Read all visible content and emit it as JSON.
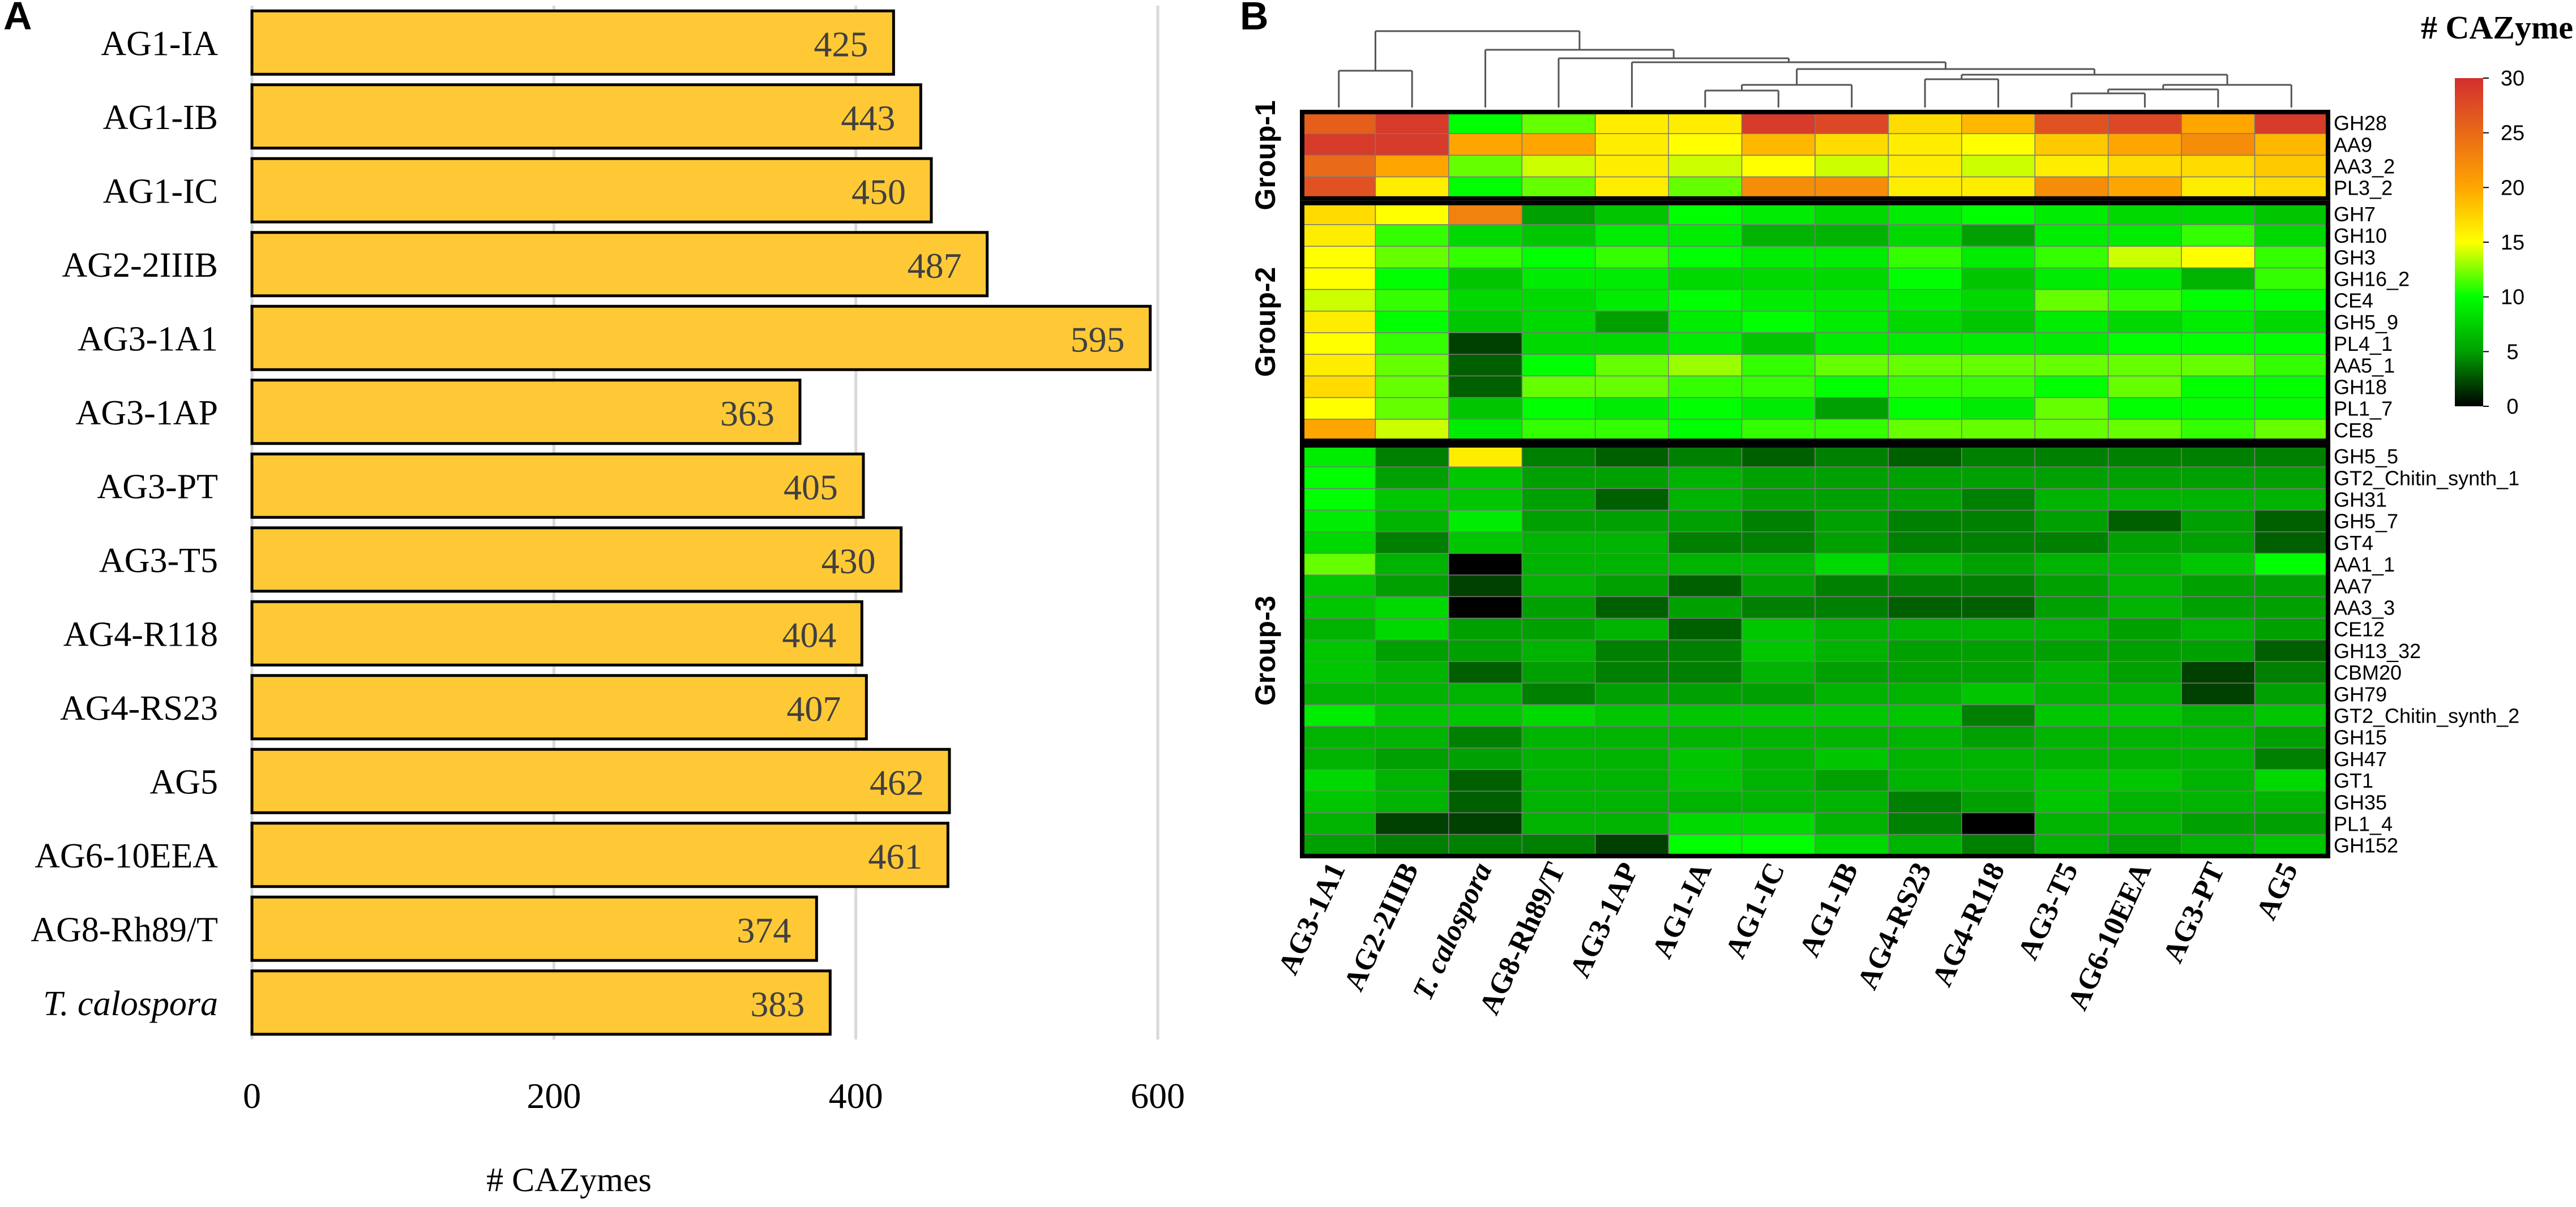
{
  "chart_data": [
    {
      "type": "bar",
      "orientation": "horizontal",
      "panel_label": "A",
      "categories": [
        "AG1-IA",
        "AG1-IB",
        "AG1-IC",
        "AG2-2IIIB",
        "AG3-1A1",
        "AG3-1AP",
        "AG3-PT",
        "AG3-T5",
        "AG4-R118",
        "AG4-RS23",
        "AG5",
        "AG6-10EEA",
        "AG8-Rh89/T",
        "T. calospora"
      ],
      "values": [
        425,
        443,
        450,
        487,
        595,
        363,
        405,
        430,
        404,
        407,
        462,
        461,
        374,
        383
      ],
      "xlabel": "# CAZymes",
      "ylabel": "",
      "xlim": [
        0,
        600
      ],
      "xticks": [
        0,
        200,
        400,
        600
      ],
      "grid": true,
      "bar_color": "#FFC936",
      "italic_categories": [
        "T. calospora"
      ]
    },
    {
      "type": "heatmap",
      "panel_label": "B",
      "legend_title": "# CAZyme",
      "colorbar_ticks": [
        0,
        5,
        10,
        15,
        20,
        25,
        30
      ],
      "value_range": [
        0,
        30
      ],
      "colors": {
        "low": "#000000",
        "mid": "#00FF00",
        "high_mid": "#FFFF00",
        "orange": "#FFA500",
        "high": "#D32F2F"
      },
      "columns": [
        "AG3-1A1",
        "AG2-2IIIB",
        "T. calospora",
        "AG8-Rh89/T",
        "AG3-1AP",
        "AG1-IA",
        "AG1-IC",
        "AG1-IB",
        "AG4-RS23",
        "AG4-R118",
        "AG3-T5",
        "AG6-10EEA",
        "AG3-PT",
        "AG5"
      ],
      "italic_columns": [
        "T. calospora"
      ],
      "groups": [
        {
          "label": "Group-1",
          "rows": [
            "GH28",
            "AA9",
            "AA3_2",
            "PL3_2"
          ]
        },
        {
          "label": "Group-2",
          "rows": [
            "GH7",
            "GH10",
            "GH3",
            "GH16_2",
            "CE4",
            "GH5_9",
            "PL4_1",
            "AA5_1",
            "GH18",
            "PL1_7",
            "CE8"
          ]
        },
        {
          "label": "Group-3",
          "rows": [
            "GH5_5",
            "GT2_Chitin_synth_1",
            "GH31",
            "GH5_7",
            "GT4",
            "AA1_1",
            "AA7",
            "AA3_3",
            "CE12",
            "GH13_32",
            "CBM20",
            "GH79",
            "GT2_Chitin_synth_2",
            "GH15",
            "GH47",
            "GT1",
            "GH35",
            "PL1_4",
            "GH152"
          ]
        }
      ],
      "values": [
        [
          26,
          29,
          10,
          12,
          16,
          16,
          29,
          28,
          17,
          19,
          27,
          28,
          20,
          29
        ],
        [
          29,
          29,
          20,
          20,
          16,
          15,
          19,
          17,
          16,
          15,
          18,
          20,
          22,
          19
        ],
        [
          25,
          20,
          12,
          14,
          16,
          14,
          15,
          14,
          16,
          14,
          16,
          17,
          17,
          18
        ],
        [
          27,
          16,
          10,
          12,
          16,
          12,
          22,
          22,
          16,
          16,
          22,
          20,
          16,
          17
        ],
        [
          17,
          15,
          23,
          5,
          7,
          10,
          9,
          8,
          9,
          10,
          9,
          8,
          8,
          7
        ],
        [
          16,
          11,
          8,
          7,
          9,
          9,
          6,
          6,
          8,
          5,
          9,
          9,
          11,
          8
        ],
        [
          15,
          12,
          11,
          10,
          11,
          10,
          9,
          9,
          11,
          9,
          11,
          14,
          15,
          11
        ],
        [
          15,
          10,
          7,
          9,
          9,
          8,
          8,
          8,
          10,
          7,
          9,
          9,
          6,
          11
        ],
        [
          14,
          11,
          8,
          8,
          9,
          10,
          9,
          9,
          9,
          8,
          12,
          11,
          10,
          10
        ],
        [
          16,
          10,
          7,
          8,
          5,
          9,
          10,
          9,
          8,
          7,
          9,
          8,
          9,
          8
        ],
        [
          15,
          11,
          2,
          8,
          8,
          9,
          7,
          9,
          9,
          9,
          9,
          10,
          10,
          10
        ],
        [
          16,
          12,
          3,
          10,
          12,
          13,
          11,
          12,
          12,
          12,
          12,
          12,
          12,
          11
        ],
        [
          17,
          12,
          3,
          12,
          12,
          11,
          11,
          10,
          11,
          11,
          10,
          12,
          10,
          10
        ],
        [
          15,
          12,
          7,
          10,
          9,
          10,
          9,
          5,
          10,
          9,
          12,
          10,
          10,
          10
        ],
        [
          20,
          14,
          9,
          11,
          11,
          10,
          11,
          11,
          12,
          12,
          12,
          12,
          11,
          12
        ],
        [
          9,
          4,
          16,
          4,
          3,
          4,
          3,
          4,
          3,
          4,
          4,
          4,
          4,
          4
        ],
        [
          10,
          5,
          7,
          5,
          5,
          6,
          5,
          5,
          5,
          5,
          5,
          5,
          5,
          5
        ],
        [
          10,
          7,
          7,
          5,
          3,
          6,
          5,
          5,
          5,
          4,
          6,
          6,
          6,
          6
        ],
        [
          9,
          6,
          9,
          5,
          5,
          5,
          4,
          5,
          4,
          4,
          5,
          3,
          5,
          3
        ],
        [
          8,
          4,
          7,
          6,
          6,
          4,
          4,
          5,
          4,
          4,
          4,
          5,
          5,
          3
        ],
        [
          12,
          6,
          0,
          6,
          6,
          6,
          6,
          8,
          6,
          5,
          6,
          6,
          7,
          10
        ],
        [
          7,
          5,
          2,
          6,
          5,
          3,
          5,
          4,
          4,
          4,
          5,
          6,
          5,
          5
        ],
        [
          7,
          8,
          0,
          5,
          3,
          5,
          4,
          4,
          3,
          3,
          5,
          6,
          5,
          5
        ],
        [
          6,
          8,
          5,
          5,
          6,
          3,
          7,
          6,
          6,
          6,
          6,
          5,
          6,
          5
        ],
        [
          7,
          5,
          5,
          6,
          4,
          4,
          7,
          6,
          5,
          5,
          5,
          5,
          5,
          3
        ],
        [
          7,
          6,
          3,
          5,
          4,
          4,
          6,
          5,
          5,
          5,
          6,
          5,
          2,
          4
        ],
        [
          6,
          6,
          6,
          4,
          5,
          5,
          5,
          6,
          6,
          7,
          6,
          6,
          2,
          5
        ],
        [
          9,
          7,
          7,
          8,
          7,
          7,
          7,
          7,
          7,
          4,
          7,
          7,
          6,
          7
        ],
        [
          6,
          6,
          4,
          6,
          6,
          6,
          6,
          6,
          6,
          5,
          6,
          6,
          6,
          5
        ],
        [
          6,
          5,
          5,
          6,
          6,
          7,
          6,
          7,
          6,
          6,
          6,
          6,
          6,
          4
        ],
        [
          8,
          6,
          3,
          6,
          6,
          7,
          6,
          5,
          6,
          6,
          7,
          7,
          6,
          8
        ],
        [
          7,
          6,
          3,
          6,
          6,
          6,
          6,
          6,
          4,
          5,
          7,
          6,
          6,
          6
        ],
        [
          6,
          2,
          2,
          6,
          6,
          8,
          8,
          6,
          4,
          0,
          6,
          6,
          5,
          5
        ],
        [
          5,
          4,
          4,
          4,
          2,
          10,
          10,
          8,
          6,
          4,
          6,
          5,
          6,
          7
        ]
      ]
    }
  ]
}
